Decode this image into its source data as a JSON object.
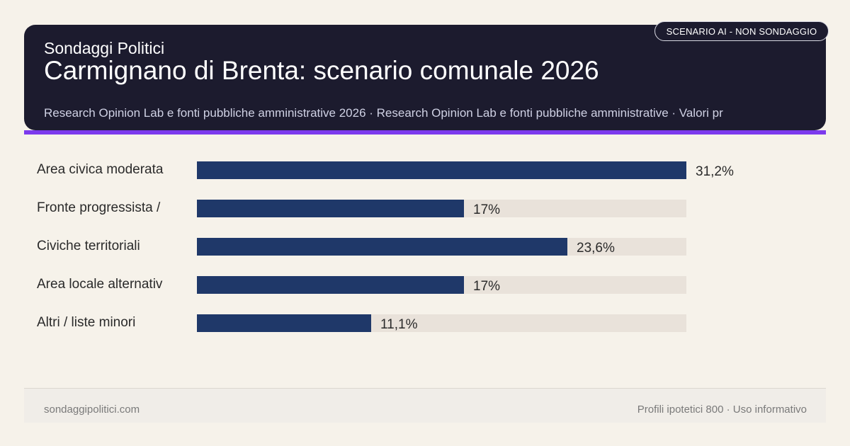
{
  "header": {
    "brand": "Sondaggi Politici",
    "title": "Carmignano di Brenta: scenario comunale 2026",
    "source": "Research Opinion Lab e fonti pubbliche amministrative 2026 · Research Opinion Lab e fonti pubbliche amministrative · Valori pr",
    "tag": "SCENARIO AI - NON SONDAGGIO"
  },
  "colors": {
    "header_bg": "#1c1b2e",
    "accent": "#7c3aed",
    "bar": "#1f3869",
    "track": "#e9e2da",
    "page_bg": "#f6f2ea"
  },
  "chart_data": {
    "type": "bar",
    "orientation": "horizontal",
    "categories": [
      "Area civica moderata",
      "Fronte progressista /",
      "Civiche territoriali",
      "Area locale alternativ",
      "Altri / liste minori"
    ],
    "values": [
      31.2,
      17,
      23.6,
      17,
      11.1
    ],
    "value_labels": [
      "31,2%",
      "17%",
      "23,6%",
      "17%",
      "11,1%"
    ],
    "xlim": [
      0,
      31.2
    ],
    "grid": false,
    "legend": "none"
  },
  "footer": {
    "site": "sondaggipolitici.com",
    "note": "Profili ipotetici 800 · Uso informativo"
  }
}
